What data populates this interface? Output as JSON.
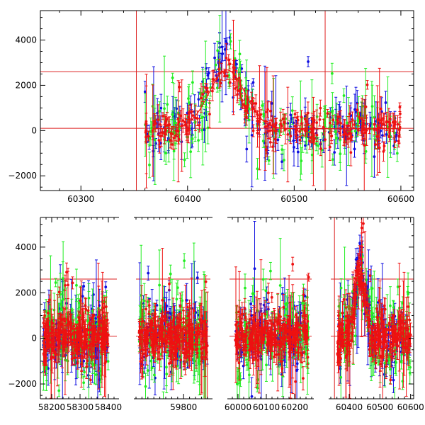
{
  "colors": {
    "blue": "#1010e0",
    "green": "#22ee22",
    "red": "#ee1111",
    "refline": "#dd2222",
    "frame": "#000000"
  },
  "chart_data": [
    {
      "type": "scatter",
      "title": "",
      "xlabel": "",
      "ylabel": "",
      "xlim": [
        60262,
        60612
      ],
      "ylim": [
        -2650,
        5300
      ],
      "xticks": [
        60300,
        60400,
        60500,
        60600
      ],
      "xtick_labels": [
        "60300",
        "60400",
        "60500",
        "60600"
      ],
      "yticks": [
        -2000,
        0,
        2000,
        4000
      ],
      "ytick_labels": [
        "−2000",
        "0",
        "2000",
        "4000"
      ],
      "hlines": [
        100,
        2600
      ],
      "vlines": [
        60352,
        60529
      ],
      "series": [
        {
          "color": "blue",
          "x_range": [
            60360,
            60600
          ],
          "peak": 60435,
          "peak_height": 3300,
          "peak_width": 14,
          "scatter": 600
        },
        {
          "color": "green",
          "x_range": [
            60360,
            60600
          ],
          "peak": 60435,
          "peak_height": 2500,
          "peak_width": 14,
          "scatter": 750
        },
        {
          "color": "red",
          "x_range": [
            60360,
            60600
          ],
          "peak": 60435,
          "peak_height": 2700,
          "peak_width": 16,
          "scatter": 400
        }
      ],
      "model_curve": {
        "color": "red",
        "x_range": [
          60370,
          60600
        ],
        "peak": 60437,
        "height": 2600,
        "width": 17,
        "base": 80
      }
    },
    {
      "type": "scatter",
      "title": "",
      "xlabel": "",
      "ylabel": "",
      "ylim": [
        -2650,
        5300
      ],
      "yticks": [
        -2000,
        0,
        2000,
        4000
      ],
      "ytick_labels": [
        "−2000",
        "0",
        "2000",
        "4000"
      ],
      "hlines": [
        100,
        2600
      ],
      "segments": [
        {
          "xlim": [
            58160,
            58430
          ],
          "xticks": [
            58200,
            58300,
            58400
          ],
          "xtick_labels": [
            "58200",
            "58300",
            "58400"
          ],
          "data_range": [
            58170,
            58400
          ]
        },
        {
          "xlim": [
            59640,
            59890
          ],
          "xticks": [
            59800
          ],
          "xtick_labels": [
            "59800"
          ],
          "data_range": [
            59650,
            59880
          ]
        },
        {
          "xlim": [
            59970,
            60260
          ],
          "xticks": [
            60000,
            60100,
            60200
          ],
          "xtick_labels": [
            "60000",
            "60100",
            "60200"
          ],
          "data_range": [
            59990,
            60250
          ]
        },
        {
          "xlim": [
            60340,
            60610
          ],
          "xticks": [
            60400,
            60500,
            60600
          ],
          "xtick_labels": [
            "60400",
            "60500",
            "60600"
          ],
          "data_range": [
            60360,
            60600
          ],
          "vline": 60352,
          "peak": 60435
        }
      ]
    }
  ]
}
